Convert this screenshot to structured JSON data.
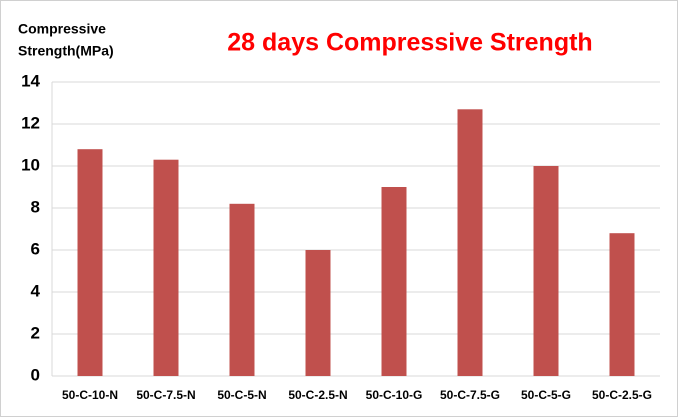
{
  "chart_data": {
    "type": "bar",
    "title": "28 days Compressive Strength",
    "y_label": [
      "Compressive",
      "Strength(MPa)"
    ],
    "categories": [
      "50-C-10-N",
      "50-C-7.5-N",
      "50-C-5-N",
      "50-C-2.5-N",
      "50-C-10-G",
      "50-C-7.5-G",
      "50-C-5-G",
      "50-C-2.5-G"
    ],
    "values": [
      10.8,
      10.3,
      8.2,
      6.0,
      9.0,
      12.7,
      10.0,
      6.8
    ],
    "color": "#c0504d",
    "ylim": [
      0,
      14
    ],
    "yticks": [
      0,
      2,
      4,
      6,
      8,
      10,
      12,
      14
    ],
    "grid": true
  }
}
